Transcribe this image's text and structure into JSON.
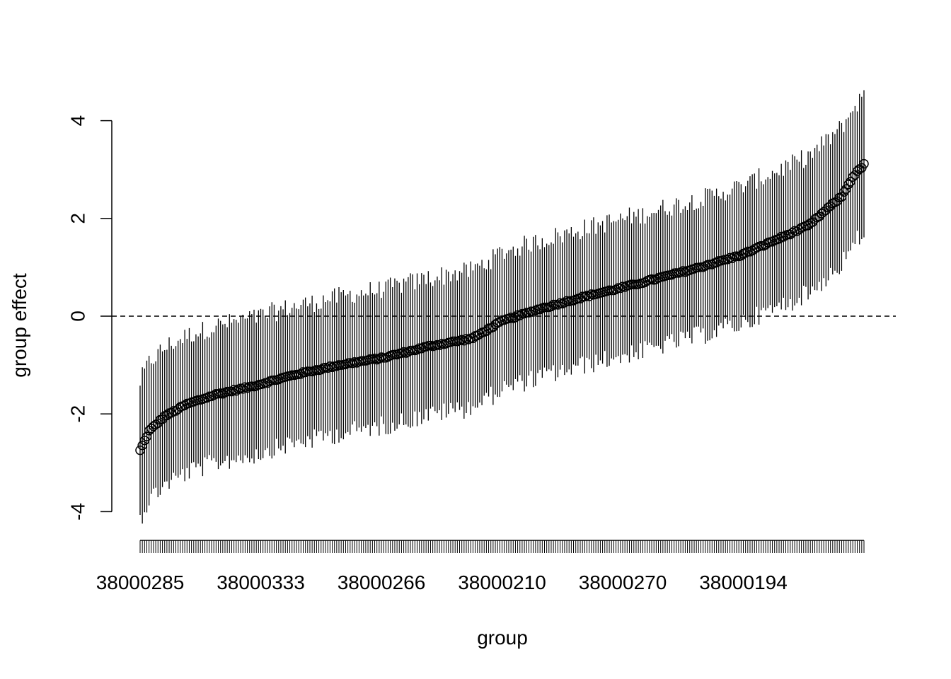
{
  "chart_data": {
    "type": "scatter",
    "title": "",
    "xlabel": "group",
    "ylabel": "group effect",
    "ylim": [
      -4.4,
      4.4
    ],
    "yticks": [
      -4,
      -2,
      0,
      2,
      4
    ],
    "ytick_labels": [
      "-4",
      "-2",
      "0",
      "2",
      "4"
    ],
    "n_groups": 325,
    "x_tick_labels": [
      "38000285",
      "38000333",
      "38000266",
      "38000210",
      "38000270",
      "38000194"
    ],
    "x_tick_label_indices": [
      1,
      55,
      109,
      163,
      217,
      271
    ],
    "reference_line": {
      "y": 0,
      "style": "dashed"
    },
    "series": [
      {
        "marker": "open-circle",
        "error_bars": true,
        "interval_half_width_range": [
          1.2,
          1.6
        ],
        "sorted_estimate_profile": {
          "index": [
            1,
            5,
            12,
            22,
            35,
            50,
            70,
            90,
            110,
            130,
            150,
            163,
            180,
            200,
            220,
            235,
            250,
            270,
            285,
            300,
            315,
            320,
            325
          ],
          "estimate": [
            -2.75,
            -2.35,
            -2.05,
            -1.8,
            -1.6,
            -1.45,
            -1.2,
            -1.0,
            -0.85,
            -0.62,
            -0.45,
            -0.1,
            0.15,
            0.4,
            0.62,
            0.8,
            0.98,
            1.25,
            1.55,
            1.85,
            2.45,
            2.85,
            3.1
          ]
        }
      }
    ]
  }
}
